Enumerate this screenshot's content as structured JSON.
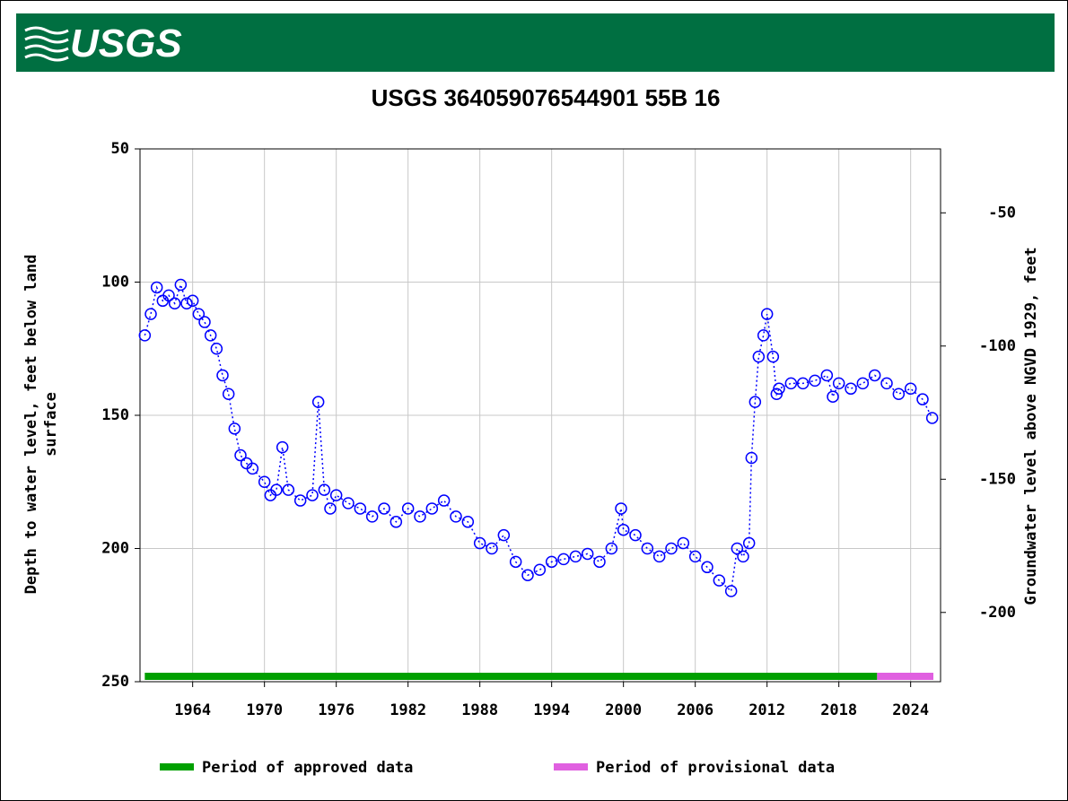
{
  "chart_data": {
    "type": "scatter",
    "header": "USGS",
    "title": "USGS 364059076544901 55B 16",
    "ylabel": [
      "Depth to water level, feet below land",
      "surface"
    ],
    "y2label": "Groundwater level above NGVD 1929, feet",
    "xlim": [
      1959.6,
      2026.5
    ],
    "xticks": [
      1964,
      1970,
      1976,
      1982,
      1988,
      1994,
      2000,
      2006,
      2012,
      2018,
      2024
    ],
    "ylim": [
      50,
      250
    ],
    "y_inverted": true,
    "yticks": [
      50,
      100,
      150,
      200,
      250
    ],
    "y2lim": [
      -226,
      -26
    ],
    "y2ticks": [
      -50,
      -100,
      -150,
      -200
    ],
    "grid": true,
    "series": [
      {
        "name": "Depth to water level",
        "color": "#0000ff",
        "x": [
          1960.0,
          1960.5,
          1961,
          1961.5,
          1962,
          1962.5,
          1963,
          1963.5,
          1964,
          1964.5,
          1965,
          1965.5,
          1966,
          1966.5,
          1967,
          1967.5,
          1968,
          1968.5,
          1969,
          1970,
          1970.5,
          1971,
          1971.5,
          1972,
          1973,
          1974,
          1974.5,
          1975,
          1975.5,
          1976,
          1977,
          1978,
          1979,
          1980,
          1981,
          1982,
          1983,
          1984,
          1985,
          1986,
          1987,
          1988,
          1989,
          1990,
          1991,
          1992,
          1993,
          1994,
          1995,
          1996,
          1997,
          1998,
          1999,
          1999.8,
          2000,
          2001,
          2002,
          2003,
          2004,
          2005,
          2006,
          2007,
          2008,
          2009,
          2009.5,
          2010,
          2010.5,
          2010.7,
          2011,
          2011.3,
          2011.7,
          2012,
          2012.5,
          2012.8,
          2013,
          2014,
          2015,
          2016,
          2017,
          2017.5,
          2018,
          2019,
          2020,
          2021,
          2022,
          2023,
          2024,
          2025,
          2025.8
        ],
        "values": [
          120,
          112,
          102,
          107,
          105,
          108,
          101,
          108,
          107,
          112,
          115,
          120,
          125,
          135,
          142,
          155,
          165,
          168,
          170,
          175,
          180,
          178,
          162,
          178,
          182,
          180,
          145,
          178,
          185,
          180,
          183,
          185,
          188,
          185,
          190,
          185,
          188,
          185,
          182,
          188,
          190,
          198,
          200,
          195,
          205,
          210,
          208,
          205,
          204,
          203,
          202,
          205,
          200,
          185,
          193,
          195,
          200,
          203,
          200,
          198,
          203,
          207,
          212,
          216,
          200,
          203,
          198,
          166,
          145,
          128,
          120,
          112,
          128,
          142,
          140,
          138,
          138,
          137,
          135,
          143,
          138,
          140,
          138,
          135,
          138,
          142,
          140,
          144,
          151
        ]
      }
    ],
    "periods": [
      {
        "name": "Period of approved data",
        "color": "#00a000",
        "start": 1960.0,
        "end": 2021.2
      },
      {
        "name": "Period of provisional data",
        "color": "#e060e0",
        "start": 2021.2,
        "end": 2025.9
      }
    ]
  }
}
